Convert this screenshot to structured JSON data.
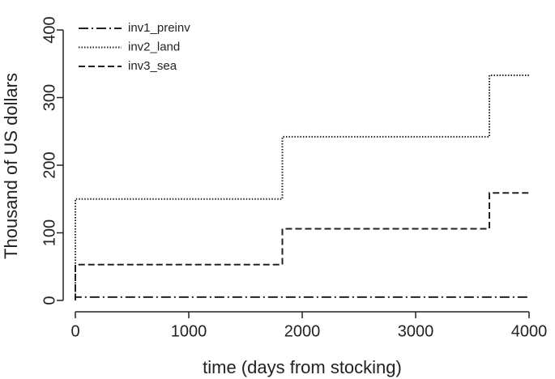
{
  "chart_data": {
    "type": "line",
    "xlabel": "time (days from stocking)",
    "ylabel": "Thousand of US dollars",
    "x": [
      0,
      0,
      1825,
      1825,
      3650,
      3650,
      4000
    ],
    "series": [
      {
        "name": "inv1_preinv",
        "color": "#222222",
        "linestyle": "dashdot",
        "values": [
          0,
          5,
          5,
          5,
          5,
          5,
          5
        ]
      },
      {
        "name": "inv2_land",
        "color": "#222222",
        "linestyle": "dotted",
        "values": [
          0,
          150,
          150,
          242,
          242,
          333,
          333
        ]
      },
      {
        "name": "inv3_sea",
        "color": "#222222",
        "linestyle": "dashed",
        "values": [
          0,
          53,
          53,
          106,
          106,
          159,
          159
        ]
      }
    ],
    "xlim": [
      0,
      4000
    ],
    "xticks": [
      0,
      1000,
      2000,
      3000,
      4000
    ],
    "ylim": [
      0,
      400
    ],
    "yticks": [
      0,
      100,
      200,
      300,
      400
    ],
    "legend": "top-left"
  }
}
